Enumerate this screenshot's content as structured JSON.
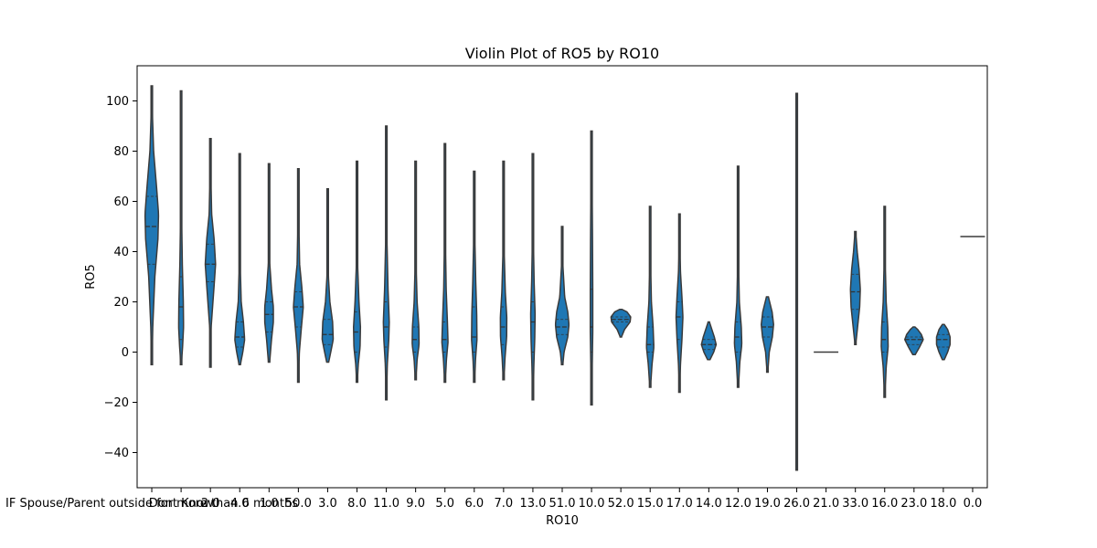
{
  "chart_data": {
    "type": "violin",
    "title": "Violin Plot of RO5 by RO10",
    "xlabel": "RO10",
    "ylabel": "RO5",
    "ylim": [
      -54,
      114
    ],
    "yticks": [
      -40,
      -20,
      0,
      20,
      40,
      60,
      80,
      100
    ],
    "grid": false,
    "legend": "none",
    "color": "#1f77b4",
    "edge_color": "#3a3a3a",
    "categories": [
      "IF Spouse/Parent outside for more than 6 months",
      "Dont Know",
      "2.0",
      "4.0",
      "1.0",
      "50.0",
      "3.0",
      "8.0",
      "11.0",
      "9.0",
      "5.0",
      "6.0",
      "7.0",
      "13.0",
      "51.0",
      "10.0",
      "52.0",
      "15.0",
      "17.0",
      "14.0",
      "12.0",
      "19.0",
      "26.0",
      "21.0",
      "33.0",
      "16.0",
      "23.0",
      "18.0",
      "0.0"
    ],
    "tick_labels": [
      "IF Spouse/Parent outside for more than 6 months",
      "Dont Know",
      "2.0",
      "4.0",
      "1.0",
      "50.0",
      "3.0",
      "8.0",
      "11.0",
      "9.0",
      "5.0",
      "6.0",
      "7.0",
      "13.0",
      "51.0",
      "10.0",
      "52.0",
      "15.0",
      "17.0",
      "14.0",
      "12.0",
      "19.0",
      "26.0",
      "21.0",
      "33.0",
      "16.0",
      "23.0",
      "18.0",
      "0.0"
    ],
    "violins": [
      {
        "min": -5,
        "max": 106,
        "q1": 35,
        "median": 50,
        "q3": 62,
        "profile": [
          [
            -5,
            0.02
          ],
          [
            10,
            0.08
          ],
          [
            30,
            0.25
          ],
          [
            45,
            0.5
          ],
          [
            55,
            0.55
          ],
          [
            65,
            0.4
          ],
          [
            80,
            0.15
          ],
          [
            95,
            0.05
          ],
          [
            106,
            0.02
          ]
        ]
      },
      {
        "min": -5,
        "max": 104,
        "q1": 5,
        "median": 18,
        "q3": 30,
        "profile": [
          [
            -5,
            0.02
          ],
          [
            2,
            0.12
          ],
          [
            10,
            0.2
          ],
          [
            20,
            0.18
          ],
          [
            35,
            0.1
          ],
          [
            55,
            0.04
          ],
          [
            80,
            0.02
          ],
          [
            104,
            0.01
          ]
        ]
      },
      {
        "min": -6,
        "max": 85,
        "q1": 28,
        "median": 35,
        "q3": 43,
        "profile": [
          [
            -6,
            0.02
          ],
          [
            10,
            0.06
          ],
          [
            25,
            0.28
          ],
          [
            35,
            0.42
          ],
          [
            45,
            0.3
          ],
          [
            55,
            0.1
          ],
          [
            70,
            0.04
          ],
          [
            85,
            0.02
          ]
        ]
      },
      {
        "min": -5,
        "max": 79,
        "q1": 2,
        "median": 6,
        "q3": 12,
        "profile": [
          [
            -5,
            0.05
          ],
          [
            0,
            0.25
          ],
          [
            5,
            0.4
          ],
          [
            12,
            0.3
          ],
          [
            20,
            0.12
          ],
          [
            35,
            0.04
          ],
          [
            60,
            0.02
          ],
          [
            79,
            0.01
          ]
        ]
      },
      {
        "min": -4,
        "max": 75,
        "q1": 8,
        "median": 15,
        "q3": 20,
        "profile": [
          [
            -4,
            0.05
          ],
          [
            5,
            0.2
          ],
          [
            12,
            0.35
          ],
          [
            18,
            0.35
          ],
          [
            25,
            0.2
          ],
          [
            35,
            0.06
          ],
          [
            55,
            0.02
          ],
          [
            75,
            0.01
          ]
        ]
      },
      {
        "min": -12,
        "max": 73,
        "q1": 10,
        "median": 18,
        "q3": 24,
        "profile": [
          [
            -12,
            0.02
          ],
          [
            0,
            0.08
          ],
          [
            10,
            0.25
          ],
          [
            18,
            0.4
          ],
          [
            26,
            0.28
          ],
          [
            35,
            0.1
          ],
          [
            55,
            0.03
          ],
          [
            73,
            0.01
          ]
        ]
      },
      {
        "min": -4,
        "max": 65,
        "q1": 3,
        "median": 7,
        "q3": 13,
        "profile": [
          [
            -4,
            0.08
          ],
          [
            0,
            0.25
          ],
          [
            5,
            0.45
          ],
          [
            12,
            0.4
          ],
          [
            20,
            0.18
          ],
          [
            30,
            0.06
          ],
          [
            45,
            0.02
          ],
          [
            65,
            0.01
          ]
        ]
      },
      {
        "min": -12,
        "max": 76,
        "q1": 0,
        "median": 8,
        "q3": 16,
        "profile": [
          [
            -12,
            0.03
          ],
          [
            -5,
            0.1
          ],
          [
            2,
            0.25
          ],
          [
            10,
            0.28
          ],
          [
            20,
            0.16
          ],
          [
            35,
            0.05
          ],
          [
            55,
            0.02
          ],
          [
            76,
            0.01
          ]
        ]
      },
      {
        "min": -19,
        "max": 90,
        "q1": 2,
        "median": 10,
        "q3": 20,
        "profile": [
          [
            -19,
            0.02
          ],
          [
            -5,
            0.08
          ],
          [
            5,
            0.2
          ],
          [
            12,
            0.24
          ],
          [
            25,
            0.14
          ],
          [
            45,
            0.05
          ],
          [
            70,
            0.02
          ],
          [
            90,
            0.01
          ]
        ]
      },
      {
        "min": -11,
        "max": 76,
        "q1": 0,
        "median": 5,
        "q3": 10,
        "profile": [
          [
            -11,
            0.03
          ],
          [
            -3,
            0.12
          ],
          [
            3,
            0.28
          ],
          [
            10,
            0.26
          ],
          [
            20,
            0.12
          ],
          [
            35,
            0.04
          ],
          [
            55,
            0.02
          ],
          [
            76,
            0.01
          ]
        ]
      },
      {
        "min": -12,
        "max": 83,
        "q1": 0,
        "median": 5,
        "q3": 12,
        "profile": [
          [
            -12,
            0.03
          ],
          [
            -3,
            0.12
          ],
          [
            4,
            0.25
          ],
          [
            12,
            0.2
          ],
          [
            25,
            0.1
          ],
          [
            45,
            0.04
          ],
          [
            65,
            0.02
          ],
          [
            83,
            0.01
          ]
        ]
      },
      {
        "min": -12,
        "max": 72,
        "q1": 0,
        "median": 6,
        "q3": 18,
        "profile": [
          [
            -12,
            0.03
          ],
          [
            -3,
            0.1
          ],
          [
            5,
            0.22
          ],
          [
            15,
            0.2
          ],
          [
            28,
            0.12
          ],
          [
            45,
            0.05
          ],
          [
            60,
            0.02
          ],
          [
            72,
            0.01
          ]
        ]
      },
      {
        "min": -11,
        "max": 76,
        "q1": 3,
        "median": 10,
        "q3": 18,
        "profile": [
          [
            -11,
            0.03
          ],
          [
            -2,
            0.12
          ],
          [
            6,
            0.25
          ],
          [
            14,
            0.26
          ],
          [
            24,
            0.14
          ],
          [
            40,
            0.05
          ],
          [
            60,
            0.02
          ],
          [
            76,
            0.01
          ]
        ]
      },
      {
        "min": -19,
        "max": 79,
        "q1": 0,
        "median": 12,
        "q3": 20,
        "profile": [
          [
            -19,
            0.02
          ],
          [
            -5,
            0.08
          ],
          [
            5,
            0.15
          ],
          [
            15,
            0.18
          ],
          [
            28,
            0.1
          ],
          [
            45,
            0.04
          ],
          [
            65,
            0.02
          ],
          [
            79,
            0.01
          ]
        ]
      },
      {
        "min": -5,
        "max": 50,
        "q1": 7,
        "median": 10,
        "q3": 13,
        "profile": [
          [
            -5,
            0.05
          ],
          [
            0,
            0.15
          ],
          [
            6,
            0.45
          ],
          [
            11,
            0.55
          ],
          [
            16,
            0.45
          ],
          [
            22,
            0.2
          ],
          [
            35,
            0.05
          ],
          [
            50,
            0.02
          ]
        ]
      },
      {
        "min": -21,
        "max": 88,
        "q1": 0,
        "median": 10,
        "q3": 25,
        "profile": [
          [
            -21,
            0.02
          ],
          [
            -5,
            0.06
          ],
          [
            8,
            0.1
          ],
          [
            25,
            0.1
          ],
          [
            45,
            0.08
          ],
          [
            65,
            0.05
          ],
          [
            80,
            0.03
          ],
          [
            88,
            0.01
          ]
        ]
      },
      {
        "min": 6,
        "max": 17,
        "q1": 12,
        "median": 13,
        "q3": 14,
        "profile": [
          [
            6,
            0.05
          ],
          [
            9,
            0.3
          ],
          [
            12,
            0.75
          ],
          [
            14,
            0.8
          ],
          [
            16,
            0.5
          ],
          [
            17,
            0.1
          ]
        ]
      },
      {
        "min": -14,
        "max": 58,
        "q1": 0,
        "median": 3,
        "q3": 10,
        "profile": [
          [
            -14,
            0.03
          ],
          [
            -5,
            0.15
          ],
          [
            2,
            0.3
          ],
          [
            10,
            0.24
          ],
          [
            20,
            0.1
          ],
          [
            35,
            0.04
          ],
          [
            50,
            0.02
          ],
          [
            58,
            0.01
          ]
        ]
      },
      {
        "min": -16,
        "max": 55,
        "q1": 5,
        "median": 14,
        "q3": 20,
        "profile": [
          [
            -16,
            0.02
          ],
          [
            -5,
            0.08
          ],
          [
            5,
            0.2
          ],
          [
            14,
            0.28
          ],
          [
            22,
            0.2
          ],
          [
            32,
            0.08
          ],
          [
            45,
            0.03
          ],
          [
            55,
            0.01
          ]
        ]
      },
      {
        "min": -3,
        "max": 12,
        "q1": 1,
        "median": 3,
        "q3": 5,
        "profile": [
          [
            -3,
            0.1
          ],
          [
            0,
            0.4
          ],
          [
            3,
            0.6
          ],
          [
            6,
            0.45
          ],
          [
            9,
            0.25
          ],
          [
            12,
            0.05
          ]
        ]
      },
      {
        "min": -14,
        "max": 74,
        "q1": 0,
        "median": 6,
        "q3": 12,
        "profile": [
          [
            -14,
            0.03
          ],
          [
            -4,
            0.14
          ],
          [
            3,
            0.3
          ],
          [
            10,
            0.26
          ],
          [
            20,
            0.1
          ],
          [
            35,
            0.04
          ],
          [
            55,
            0.02
          ],
          [
            74,
            0.01
          ]
        ]
      },
      {
        "min": -8,
        "max": 22,
        "q1": 6,
        "median": 10,
        "q3": 14,
        "profile": [
          [
            -8,
            0.03
          ],
          [
            0,
            0.15
          ],
          [
            6,
            0.4
          ],
          [
            11,
            0.5
          ],
          [
            16,
            0.38
          ],
          [
            22,
            0.08
          ]
        ]
      },
      {
        "min": -47,
        "max": 103,
        "q1": 0,
        "median": 20,
        "q3": 40,
        "profile": [
          [
            -47,
            0.01
          ],
          [
            -20,
            0.03
          ],
          [
            0,
            0.05
          ],
          [
            20,
            0.06
          ],
          [
            40,
            0.05
          ],
          [
            60,
            0.04
          ],
          [
            85,
            0.02
          ],
          [
            103,
            0.01
          ]
        ]
      },
      {
        "min": 0,
        "max": 0,
        "q1": 0,
        "median": 0,
        "q3": 0,
        "profile": [
          [
            0,
            1
          ]
        ]
      },
      {
        "min": 3,
        "max": 48,
        "q1": 17,
        "median": 24,
        "q3": 31,
        "profile": [
          [
            3,
            0.03
          ],
          [
            10,
            0.18
          ],
          [
            18,
            0.35
          ],
          [
            25,
            0.4
          ],
          [
            33,
            0.3
          ],
          [
            40,
            0.15
          ],
          [
            48,
            0.03
          ]
        ]
      },
      {
        "min": -18,
        "max": 58,
        "q1": 0,
        "median": 5,
        "q3": 12,
        "profile": [
          [
            -18,
            0.02
          ],
          [
            -6,
            0.12
          ],
          [
            2,
            0.28
          ],
          [
            10,
            0.25
          ],
          [
            20,
            0.12
          ],
          [
            35,
            0.05
          ],
          [
            50,
            0.02
          ],
          [
            58,
            0.01
          ]
        ]
      },
      {
        "min": -1,
        "max": 10,
        "q1": 3,
        "median": 5,
        "q3": 6,
        "profile": [
          [
            -1,
            0.1
          ],
          [
            2,
            0.45
          ],
          [
            5,
            0.75
          ],
          [
            7,
            0.6
          ],
          [
            9,
            0.3
          ],
          [
            10,
            0.08
          ]
        ]
      },
      {
        "min": -3,
        "max": 11,
        "q1": 2,
        "median": 5,
        "q3": 7,
        "profile": [
          [
            -3,
            0.08
          ],
          [
            0,
            0.35
          ],
          [
            3,
            0.55
          ],
          [
            6,
            0.55
          ],
          [
            9,
            0.35
          ],
          [
            11,
            0.08
          ]
        ]
      },
      {
        "min": 46,
        "max": 46,
        "q1": 46,
        "median": 46,
        "q3": 46,
        "profile": [
          [
            46,
            1
          ]
        ]
      }
    ]
  }
}
